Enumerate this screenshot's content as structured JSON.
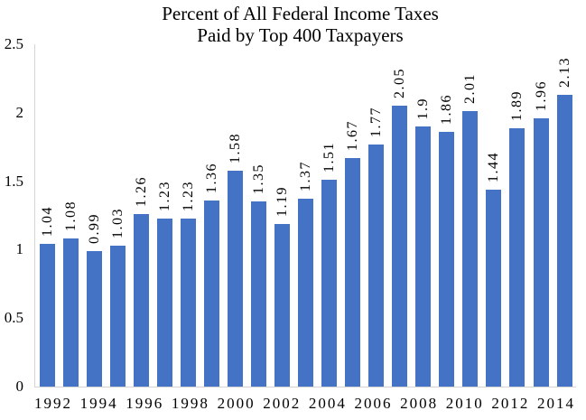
{
  "chart_data": {
    "type": "bar",
    "title_line1": "Percent of All Federal Income Taxes",
    "title_line2": "Paid by Top 400 Taxpayers",
    "categories": [
      1992,
      1993,
      1994,
      1995,
      1996,
      1997,
      1998,
      1999,
      2000,
      2001,
      2002,
      2003,
      2004,
      2005,
      2006,
      2007,
      2008,
      2009,
      2010,
      2011,
      2012,
      2013,
      2014
    ],
    "values": [
      1.04,
      1.08,
      0.99,
      1.03,
      1.26,
      1.23,
      1.23,
      1.36,
      1.58,
      1.35,
      1.19,
      1.37,
      1.51,
      1.67,
      1.77,
      2.05,
      1.9,
      1.86,
      2.01,
      1.44,
      1.89,
      1.96,
      2.13
    ],
    "value_labels": [
      "1.04",
      "1.08",
      "0.99",
      "1.03",
      "1.26",
      "1.23",
      "1.23",
      "1.36",
      "1.58",
      "1.35",
      "1.19",
      "1.37",
      "1.51",
      "1.67",
      "1.77",
      "2.05",
      "1.9",
      "1.86",
      "2.01",
      "1.44",
      "1.89",
      "1.96",
      "2.13"
    ],
    "x_tick_labels": [
      "1992",
      "1994",
      "1996",
      "1998",
      "2000",
      "2002",
      "2004",
      "2006",
      "2008",
      "2010",
      "2012",
      "2014"
    ],
    "y_tick_labels": [
      "0",
      "0.5",
      "1",
      "1.5",
      "2",
      "2.5"
    ],
    "ylim": [
      0,
      2.5
    ],
    "bar_color": "#4472C4",
    "axis_color": "#D4D4D4",
    "grid": false,
    "legend": "none"
  }
}
